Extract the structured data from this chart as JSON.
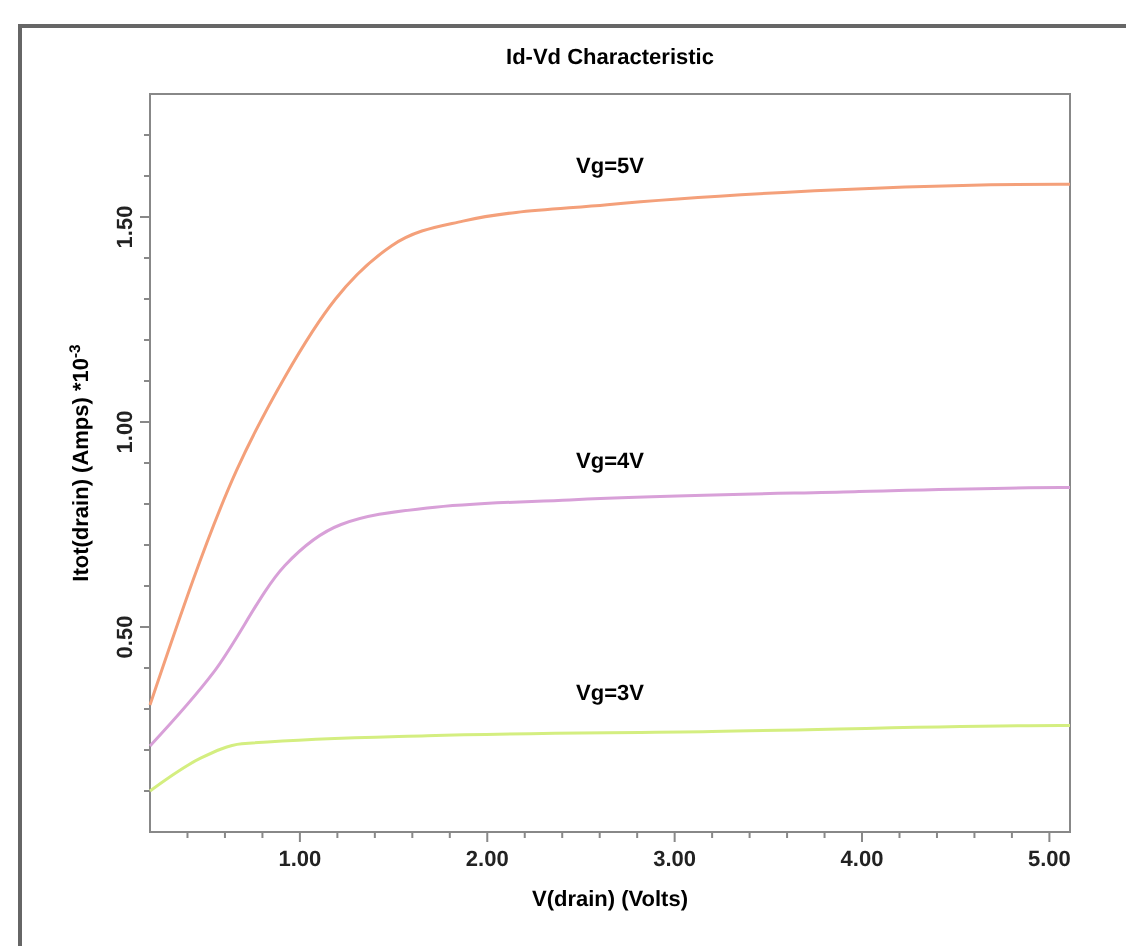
{
  "chart_data": {
    "type": "line",
    "title": "Id-Vd Characteristic",
    "xlabel": "V(drain) (Volts)",
    "ylabel": "Itot(drain) (Amps) *10$^{-3}$",
    "xlim": [
      0.2,
      5.11
    ],
    "ylim": [
      0,
      1.8
    ],
    "xticks": [
      {
        "value": 0.4,
        "label": null
      },
      {
        "value": 0.6,
        "label": null
      },
      {
        "value": 0.8,
        "label": null
      },
      {
        "value": 1,
        "label": "1.00"
      },
      {
        "value": 1.2,
        "label": null
      },
      {
        "value": 1.4,
        "label": null
      },
      {
        "value": 1.6,
        "label": null
      },
      {
        "value": 1.8,
        "label": null
      },
      {
        "value": 2,
        "label": "2.00"
      },
      {
        "value": 2.2,
        "label": null
      },
      {
        "value": 2.4,
        "label": null
      },
      {
        "value": 2.6,
        "label": null
      },
      {
        "value": 2.8,
        "label": null
      },
      {
        "value": 3,
        "label": "3.00"
      },
      {
        "value": 3.2,
        "label": null
      },
      {
        "value": 3.4,
        "label": null
      },
      {
        "value": 3.6,
        "label": null
      },
      {
        "value": 3.8,
        "label": null
      },
      {
        "value": 4,
        "label": "4.00"
      },
      {
        "value": 4.2,
        "label": null
      },
      {
        "value": 4.4,
        "label": null
      },
      {
        "value": 4.6,
        "label": null
      },
      {
        "value": 4.8,
        "label": null
      },
      {
        "value": 5,
        "label": "5.00"
      }
    ],
    "yticks": [
      {
        "value": 0.1,
        "label": null
      },
      {
        "value": 0.2,
        "label": null
      },
      {
        "value": 0.3,
        "label": null
      },
      {
        "value": 0.4,
        "label": null
      },
      {
        "value": 0.5,
        "label": "0.50"
      },
      {
        "value": 0.6,
        "label": null
      },
      {
        "value": 0.7,
        "label": null
      },
      {
        "value": 0.8,
        "label": null
      },
      {
        "value": 0.9,
        "label": null
      },
      {
        "value": 1,
        "label": "1.00"
      },
      {
        "value": 1.1,
        "label": null
      },
      {
        "value": 1.2,
        "label": null
      },
      {
        "value": 1.3,
        "label": null
      },
      {
        "value": 1.4,
        "label": null
      },
      {
        "value": 1.5,
        "label": "1.50"
      },
      {
        "value": 1.6,
        "label": null
      },
      {
        "value": 1.7,
        "label": null
      }
    ],
    "grid": false,
    "marker": "none",
    "line_style": "solid",
    "series": [
      {
        "name": "Vg=5V",
        "color": "#f4a07a",
        "x": [
          0.2,
          0.66,
          0.92,
          1.19,
          1.49,
          1.87,
          2.64,
          3.58,
          5.06,
          5.11
        ],
        "values": [
          0.31,
          0.88,
          1.11,
          1.3,
          1.43,
          1.49,
          1.53,
          1.56,
          1.58,
          1.58
        ]
      },
      {
        "name": "Vg=4V",
        "color": "#d8a0d8",
        "x": [
          0.2,
          0.54,
          0.92,
          1.22,
          1.68,
          2.44,
          3.96,
          5.06,
          5.11
        ],
        "values": [
          0.21,
          0.39,
          0.65,
          0.75,
          0.79,
          0.81,
          0.83,
          0.84,
          0.84
        ]
      },
      {
        "name": "Vg=3V",
        "color": "#d4ee80",
        "x": [
          0.2,
          0.47,
          0.69,
          1.68,
          3.2,
          5.06,
          5.11
        ],
        "values": [
          0.1,
          0.18,
          0.215,
          0.235,
          0.245,
          0.26,
          0.26
        ]
      }
    ]
  }
}
